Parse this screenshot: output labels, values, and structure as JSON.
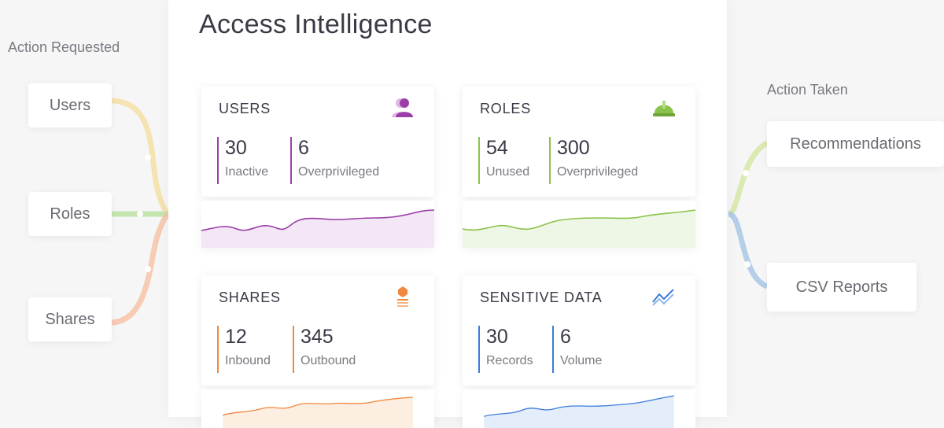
{
  "title": "Access Intelligence",
  "left": {
    "heading": "Action Requested",
    "items": [
      "Users",
      "Roles",
      "Shares"
    ]
  },
  "right": {
    "heading": "Action Taken",
    "items": [
      "Recommendations",
      "CSV Reports"
    ]
  },
  "cards": {
    "users": {
      "title": "USERS",
      "icon": "user-icon",
      "color": "#9b3ea8",
      "metrics": [
        {
          "value": "30",
          "label": "Inactive"
        },
        {
          "value": "6",
          "label": "Overprivileged"
        }
      ]
    },
    "roles": {
      "title": "ROLES",
      "icon": "hard-hat-icon",
      "color": "#8bc34a",
      "metrics": [
        {
          "value": "54",
          "label": "Unused"
        },
        {
          "value": "300",
          "label": "Overprivileged"
        }
      ]
    },
    "shares": {
      "title": "SHARES",
      "icon": "stack-icon",
      "color": "#f0883e",
      "metrics": [
        {
          "value": "12",
          "label": "Inbound"
        },
        {
          "value": "345",
          "label": "Outbound"
        }
      ]
    },
    "sensitive": {
      "title": "SENSITIVE DATA",
      "icon": "trend-lines-icon",
      "color": "#3d7bd9",
      "metrics": [
        {
          "value": "30",
          "label": "Records"
        },
        {
          "value": "6",
          "label": "Volume"
        }
      ]
    }
  }
}
